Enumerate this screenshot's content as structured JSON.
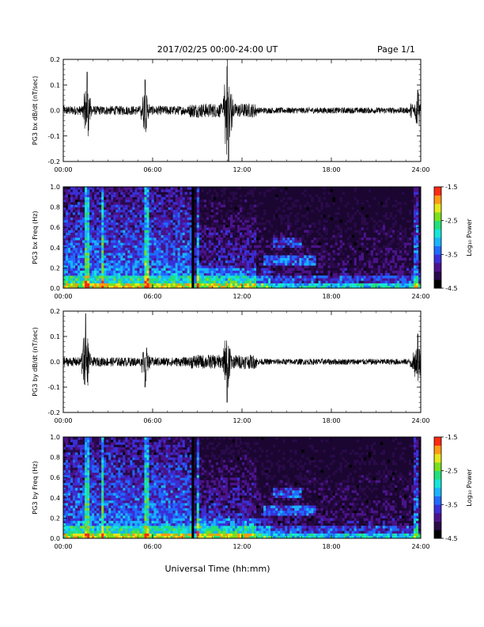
{
  "header": {
    "date_range": "2017/02/25  00:00-24:00 UT",
    "page": "Page 1/1"
  },
  "colorbar_colors": [
    "#000000",
    "#2a0a4a",
    "#4b138a",
    "#3a2fd6",
    "#1f6bff",
    "#19b4ff",
    "#17e6d8",
    "#22e07a",
    "#7ae01c",
    "#e6e61a",
    "#ff9a12",
    "#ff2a12"
  ],
  "chart_data": [
    {
      "type": "line",
      "ylabel": "PG3 bx dB/dt (nT/sec)",
      "xlim": [
        0,
        24
      ],
      "ylim": [
        -0.2,
        0.2
      ],
      "x_ticks": [
        "00:00",
        "06:00",
        "12:00",
        "18:00",
        "24:00"
      ],
      "y_ticks": [
        "0.2",
        "0.1",
        "0.0",
        "-0.1",
        "-0.2"
      ],
      "bursts": [
        {
          "t": 1.6,
          "amp": 0.15
        },
        {
          "t": 5.5,
          "amp": 0.12
        },
        {
          "t": 11.0,
          "amp": 0.18
        },
        {
          "t": 11.1,
          "amp": -0.21
        },
        {
          "t": 23.8,
          "amp": 0.08
        }
      ]
    },
    {
      "type": "heatmap",
      "ylabel": "PG3 bx Freq (Hz)",
      "xlim": [
        0,
        24
      ],
      "ylim": [
        0.0,
        1.0
      ],
      "x_ticks": [
        "00:00",
        "06:00",
        "12:00",
        "18:00",
        "24:00"
      ],
      "y_ticks": [
        "1.0",
        "0.8",
        "0.6",
        "0.4",
        "0.2",
        "0.0"
      ],
      "colorbar_label": "Log₁₀ Power",
      "colorbar_ticks": [
        "-1.5",
        "-2.5",
        "-3.5",
        "-4.5"
      ],
      "colorbar_range": [
        -4.5,
        -1.5
      ],
      "gap_time": 8.7
    },
    {
      "type": "line",
      "ylabel": "PG3 by dB/dt (nT/sec)",
      "xlim": [
        0,
        24
      ],
      "ylim": [
        -0.2,
        0.2
      ],
      "x_ticks": [
        "00:00",
        "06:00",
        "12:00",
        "18:00",
        "24:00"
      ],
      "y_ticks": [
        "0.2",
        "0.1",
        "0.0",
        "-0.1",
        "-0.2"
      ],
      "bursts": [
        {
          "t": 1.5,
          "amp": 0.19
        },
        {
          "t": 5.5,
          "amp": -0.1
        },
        {
          "t": 11.0,
          "amp": -0.16
        },
        {
          "t": 23.8,
          "amp": 0.11
        }
      ]
    },
    {
      "type": "heatmap",
      "ylabel": "PG3 by Freq (Hz)",
      "xlim": [
        0,
        24
      ],
      "ylim": [
        0.0,
        1.0
      ],
      "x_ticks": [
        "00:00",
        "06:00",
        "12:00",
        "18:00",
        "24:00"
      ],
      "y_ticks": [
        "1.0",
        "0.8",
        "0.6",
        "0.4",
        "0.2",
        "0.0"
      ],
      "colorbar_label": "Log₁₀ Power",
      "colorbar_ticks": [
        "-1.5",
        "-2.5",
        "-3.5",
        "-4.5"
      ],
      "colorbar_range": [
        -4.5,
        -1.5
      ],
      "gap_time": 8.7
    }
  ],
  "xlabel": "Universal Time (hh:mm)"
}
